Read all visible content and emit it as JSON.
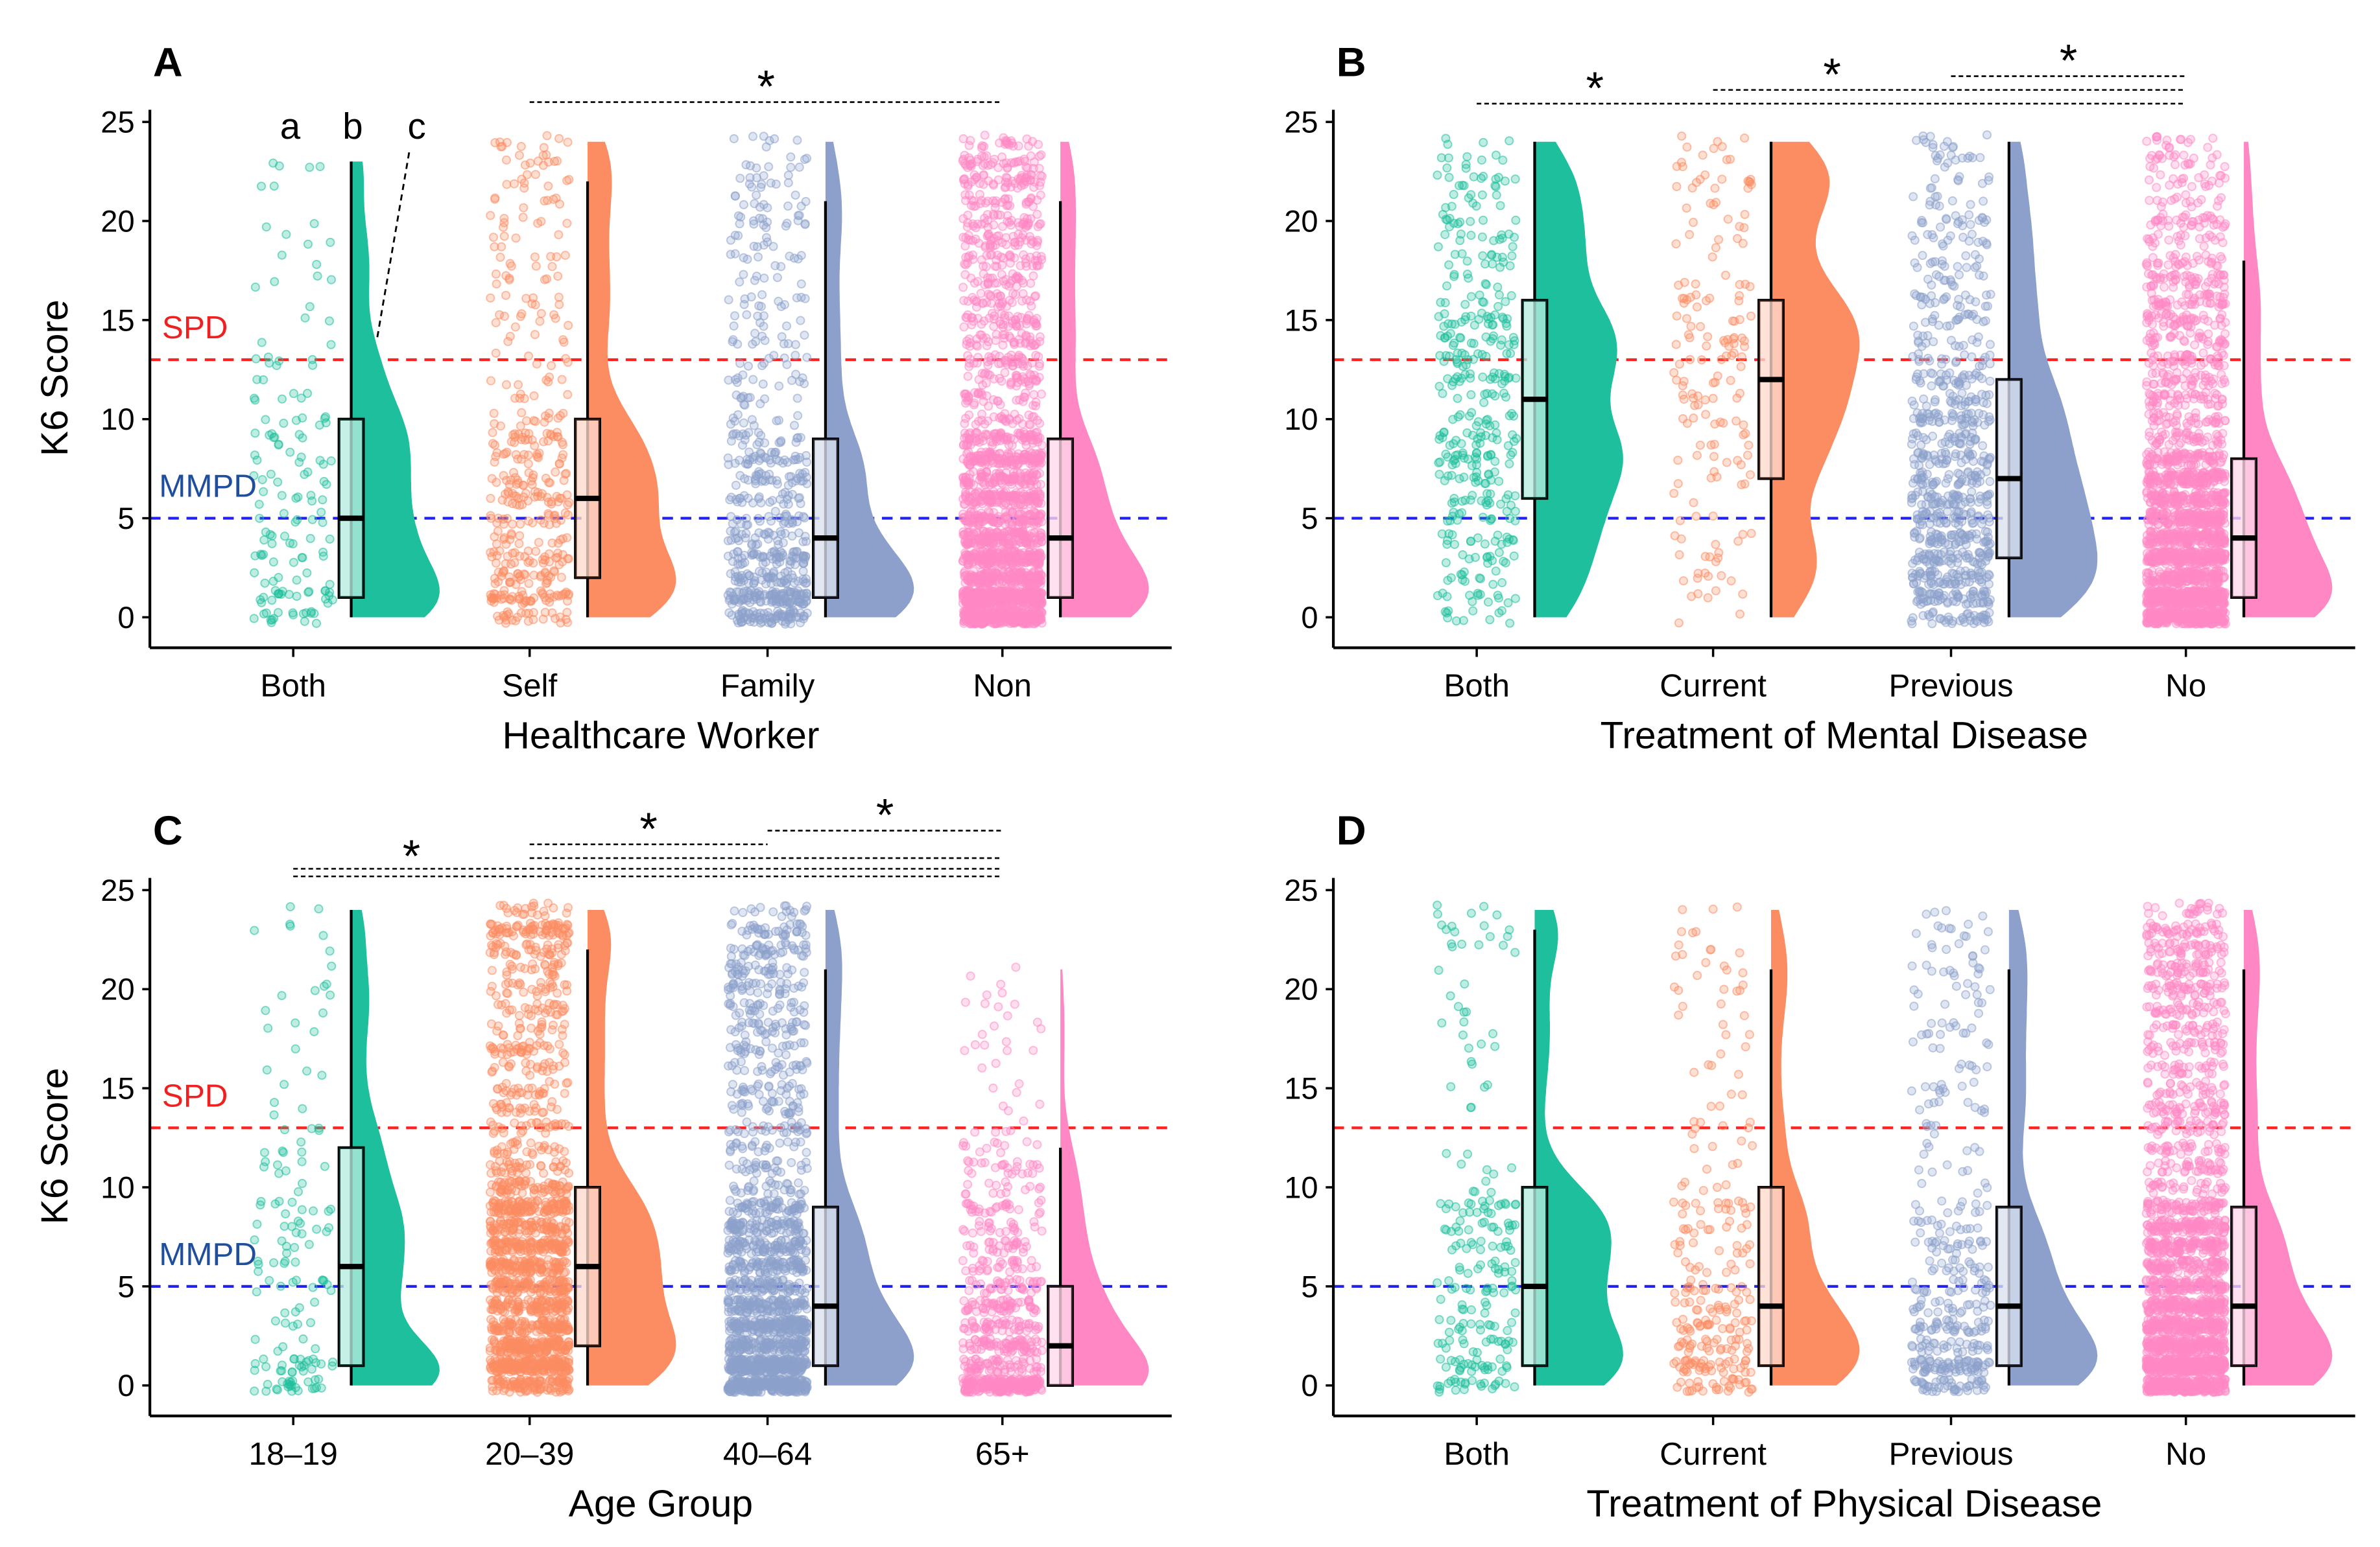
{
  "colors": {
    "group": [
      "#1dbf9c",
      "#fc8d62",
      "#8da0cb",
      "#ff88c4"
    ],
    "spd": "#ff2020",
    "mmpd": "#2222ee",
    "spd_label": "#ee2020",
    "mmpd_label": "#1f4e9c"
  },
  "chart_data": [
    {
      "type": "raincloud",
      "panel_label": "A",
      "xlabel": "Healthcare Worker",
      "ylabel": "K6 Score",
      "ylim": [
        0,
        25
      ],
      "yticks": [
        "0",
        "5",
        "10",
        "15",
        "20",
        "25"
      ],
      "categories": [
        "Both",
        "Self",
        "Family",
        "Non"
      ],
      "groups": [
        {
          "name": "Both",
          "whisker_low": 0,
          "q1": 1,
          "median": 5,
          "q3": 10,
          "whisker_high": 23,
          "max": 23,
          "approx_points": 150
        },
        {
          "name": "Self",
          "whisker_low": 0,
          "q1": 2,
          "median": 6,
          "q3": 10,
          "whisker_high": 22,
          "max": 24,
          "approx_points": 420
        },
        {
          "name": "Family",
          "whisker_low": 0,
          "q1": 1,
          "median": 4,
          "q3": 9,
          "whisker_high": 21,
          "max": 24,
          "approx_points": 650
        },
        {
          "name": "Non",
          "whisker_low": 0,
          "q1": 1,
          "median": 4,
          "q3": 9,
          "whisker_high": 21,
          "max": 24,
          "approx_points": 2400
        }
      ],
      "reference_lines": [
        {
          "label": "SPD",
          "y": 13
        },
        {
          "label": "MMPD",
          "y": 5
        }
      ],
      "show_reference_labels": true,
      "significance": [
        {
          "from": "Self",
          "to": "Non",
          "label": "*",
          "level": 0,
          "star": "center"
        }
      ],
      "annotations": [
        "a",
        "b",
        "c"
      ]
    },
    {
      "type": "raincloud",
      "panel_label": "B",
      "xlabel": "Treatment of Mental Disease",
      "ylabel": "",
      "ylim": [
        0,
        25
      ],
      "yticks": [
        "0",
        "5",
        "10",
        "15",
        "20",
        "25"
      ],
      "categories": [
        "Both",
        "Current",
        "Previous",
        "No"
      ],
      "groups": [
        {
          "name": "Both",
          "whisker_low": 0,
          "q1": 6,
          "median": 11,
          "q3": 16,
          "whisker_high": 24,
          "max": 24,
          "approx_points": 380
        },
        {
          "name": "Current",
          "whisker_low": 0,
          "q1": 7,
          "median": 12,
          "q3": 16,
          "whisker_high": 24,
          "max": 24,
          "approx_points": 170
        },
        {
          "name": "Previous",
          "whisker_low": 0,
          "q1": 3,
          "median": 7,
          "q3": 12,
          "whisker_high": 24,
          "max": 24,
          "approx_points": 800
        },
        {
          "name": "No",
          "whisker_low": 0,
          "q1": 1,
          "median": 4,
          "q3": 8,
          "whisker_high": 18,
          "max": 24,
          "approx_points": 2400
        }
      ],
      "reference_lines": [
        {
          "label": "SPD",
          "y": 13
        },
        {
          "label": "MMPD",
          "y": 5
        }
      ],
      "show_reference_labels": false,
      "significance": [
        {
          "from": "Both",
          "to": "No",
          "label": "*",
          "level": 0,
          "star": "left"
        },
        {
          "from": "Current",
          "to": "No",
          "label": "*",
          "level": 1,
          "star": "left"
        },
        {
          "from": "Previous",
          "to": "No",
          "label": "*",
          "level": 2,
          "star": "left"
        }
      ]
    },
    {
      "type": "raincloud",
      "panel_label": "C",
      "xlabel": "Age Group",
      "ylabel": "K6 Score",
      "ylim": [
        0,
        25
      ],
      "yticks": [
        "0",
        "5",
        "10",
        "15",
        "20",
        "25"
      ],
      "categories": [
        "18–19",
        "20–39",
        "40–64",
        "65+"
      ],
      "groups": [
        {
          "name": "18–19",
          "whisker_low": 0,
          "q1": 1,
          "median": 6,
          "q3": 12,
          "whisker_high": 24,
          "max": 24,
          "approx_points": 150
        },
        {
          "name": "20–39",
          "whisker_low": 0,
          "q1": 2,
          "median": 6,
          "q3": 10,
          "whisker_high": 22,
          "max": 24,
          "approx_points": 1800
        },
        {
          "name": "40–64",
          "whisker_low": 0,
          "q1": 1,
          "median": 4,
          "q3": 9,
          "whisker_high": 21,
          "max": 24,
          "approx_points": 1800
        },
        {
          "name": "65+",
          "whisker_low": 0,
          "q1": 0,
          "median": 2,
          "q3": 5,
          "whisker_high": 12,
          "max": 21,
          "approx_points": 700
        }
      ],
      "reference_lines": [
        {
          "label": "SPD",
          "y": 13
        },
        {
          "label": "MMPD",
          "y": 5
        }
      ],
      "show_reference_labels": true,
      "significance": [
        {
          "from": "18–19",
          "to": "65+",
          "label": "*",
          "level": 0,
          "star": "left",
          "double": true
        },
        {
          "from": "20–39",
          "to": "65+",
          "label": "",
          "level": 1,
          "star": "none"
        },
        {
          "from": "20–39",
          "to": "40–64",
          "label": "*",
          "level": 2,
          "star": "center"
        },
        {
          "from": "40–64",
          "to": "65+",
          "label": "*",
          "level": 3,
          "star": "center"
        }
      ]
    },
    {
      "type": "raincloud",
      "panel_label": "D",
      "xlabel": "Treatment of Physical Disease",
      "ylabel": "",
      "ylim": [
        0,
        25
      ],
      "yticks": [
        "0",
        "5",
        "10",
        "15",
        "20",
        "25"
      ],
      "categories": [
        "Both",
        "Current",
        "Previous",
        "No"
      ],
      "groups": [
        {
          "name": "Both",
          "whisker_low": 0,
          "q1": 1,
          "median": 5,
          "q3": 10,
          "whisker_high": 23,
          "max": 24,
          "approx_points": 220
        },
        {
          "name": "Current",
          "whisker_low": 0,
          "q1": 1,
          "median": 4,
          "q3": 10,
          "whisker_high": 21,
          "max": 24,
          "approx_points": 260
        },
        {
          "name": "Previous",
          "whisker_low": 0,
          "q1": 1,
          "median": 4,
          "q3": 9,
          "whisker_high": 21,
          "max": 24,
          "approx_points": 400
        },
        {
          "name": "No",
          "whisker_low": 0,
          "q1": 1,
          "median": 4,
          "q3": 9,
          "whisker_high": 21,
          "max": 24,
          "approx_points": 2400
        }
      ],
      "reference_lines": [
        {
          "label": "SPD",
          "y": 13
        },
        {
          "label": "MMPD",
          "y": 5
        }
      ],
      "show_reference_labels": false,
      "significance": []
    }
  ]
}
